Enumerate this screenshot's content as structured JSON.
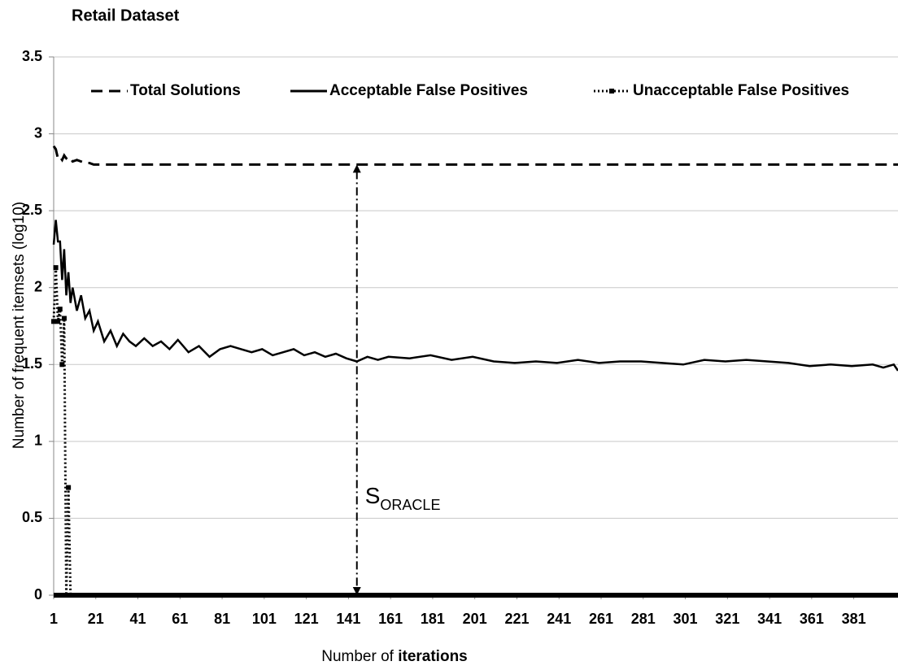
{
  "chart_data": {
    "type": "line",
    "title": "Retail Dataset",
    "y_label": "Number of frequent itemsets (log10)",
    "x_label": {
      "plain": "Number of",
      "bold": "iterations"
    },
    "x": [
      1,
      2,
      3,
      4,
      5,
      6,
      7,
      8,
      9,
      10,
      12,
      14,
      16,
      18,
      20,
      22,
      25,
      28,
      31,
      34,
      37,
      40,
      44,
      48,
      52,
      56,
      60,
      65,
      70,
      75,
      80,
      85,
      90,
      95,
      100,
      105,
      110,
      115,
      120,
      125,
      130,
      135,
      140,
      145,
      150,
      155,
      160,
      170,
      180,
      190,
      200,
      210,
      220,
      230,
      240,
      250,
      260,
      270,
      280,
      290,
      300,
      310,
      320,
      330,
      340,
      350,
      360,
      370,
      380,
      390,
      395,
      400,
      402
    ],
    "series": [
      {
        "name": "Total Solutions",
        "color": "#000000",
        "line_style": "dashed",
        "marker": false,
        "values": [
          2.92,
          2.9,
          2.84,
          2.85,
          2.83,
          2.86,
          2.84,
          2.83,
          2.84,
          2.82,
          2.83,
          2.82,
          2.81,
          2.81,
          2.8,
          2.8,
          2.8,
          2.8,
          2.8,
          2.8,
          2.8,
          2.8,
          2.8,
          2.8,
          2.8,
          2.8,
          2.8,
          2.8,
          2.8,
          2.8,
          2.8,
          2.8,
          2.8,
          2.8,
          2.8,
          2.8,
          2.8,
          2.8,
          2.8,
          2.8,
          2.8,
          2.8,
          2.8,
          2.8,
          2.8,
          2.8,
          2.8,
          2.8,
          2.8,
          2.8,
          2.8,
          2.8,
          2.8,
          2.8,
          2.8,
          2.8,
          2.8,
          2.8,
          2.8,
          2.8,
          2.8,
          2.8,
          2.8,
          2.8,
          2.8,
          2.8,
          2.8,
          2.8,
          2.8,
          2.8,
          2.8,
          2.8,
          2.8
        ]
      },
      {
        "name": "Acceptable False Positives",
        "color": "#000000",
        "line_style": "solid",
        "marker": false,
        "values": [
          2.28,
          2.44,
          2.3,
          2.3,
          2.05,
          2.25,
          1.95,
          2.1,
          1.9,
          2.0,
          1.85,
          1.95,
          1.8,
          1.85,
          1.72,
          1.78,
          1.65,
          1.72,
          1.62,
          1.7,
          1.65,
          1.62,
          1.67,
          1.62,
          1.65,
          1.6,
          1.66,
          1.58,
          1.62,
          1.55,
          1.6,
          1.62,
          1.6,
          1.58,
          1.6,
          1.56,
          1.58,
          1.6,
          1.56,
          1.58,
          1.55,
          1.57,
          1.54,
          1.52,
          1.55,
          1.53,
          1.55,
          1.54,
          1.56,
          1.53,
          1.55,
          1.52,
          1.51,
          1.52,
          1.51,
          1.53,
          1.51,
          1.52,
          1.52,
          1.51,
          1.5,
          1.53,
          1.52,
          1.53,
          1.52,
          1.51,
          1.49,
          1.5,
          1.49,
          1.5,
          1.48,
          1.5,
          1.46
        ]
      },
      {
        "name": "Unacceptable False Positives",
        "color": "#000000",
        "line_style": "dotted",
        "marker": true,
        "values": [
          1.78,
          2.13,
          1.78,
          1.86,
          1.5,
          1.8,
          0,
          0.7,
          0,
          0,
          0,
          0,
          0,
          0,
          0,
          0,
          0,
          0,
          0,
          0,
          0,
          0,
          0,
          0,
          0,
          0,
          0,
          0,
          0,
          0,
          0,
          0,
          0,
          0,
          0,
          0,
          0,
          0,
          0,
          0,
          0,
          0,
          0,
          0,
          0,
          0,
          0,
          0,
          0,
          0,
          0,
          0,
          0,
          0,
          0,
          0,
          0,
          0,
          0,
          0,
          0,
          0,
          0,
          0,
          0,
          0,
          0,
          0,
          0,
          0,
          0,
          0,
          0
        ]
      }
    ],
    "xlim": [
      1,
      402
    ],
    "xticks": [
      1,
      21,
      41,
      61,
      81,
      101,
      121,
      141,
      161,
      181,
      201,
      221,
      241,
      261,
      281,
      301,
      321,
      341,
      361,
      381
    ],
    "ylim": [
      0,
      3.5
    ],
    "yticks": [
      0,
      0.5,
      1,
      1.5,
      2,
      2.5,
      3,
      3.5
    ],
    "grid": true,
    "legend": "top",
    "annotation": {
      "text": "S",
      "subscript": "ORACLE",
      "x": 145,
      "y_from": 2.8,
      "y_to": 0
    }
  }
}
